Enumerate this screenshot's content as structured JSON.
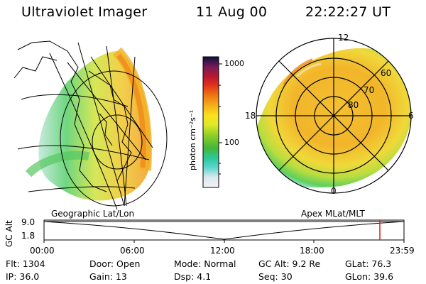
{
  "header": {
    "instrument": "Ultraviolet Imager",
    "date": "11 Aug 00",
    "time": "22:22:27 UT"
  },
  "colorbar": {
    "ticks": [
      "1000",
      "100"
    ],
    "unit_label": "photon cm⁻²s⁻¹"
  },
  "polar_plot": {
    "mlt_labels": [
      "12",
      "18",
      "6",
      "0"
    ],
    "lat_labels": [
      "60",
      "70",
      "80"
    ]
  },
  "panel_labels": {
    "left": "Geographic Lat/Lon",
    "right": "Apex MLat/MLT"
  },
  "altitude_chart": {
    "ylabel": "GC Alt",
    "y_ticks": [
      "9.0",
      "1.8"
    ],
    "x_ticks": [
      "00:00",
      "06:00",
      "12:00",
      "18:00",
      "23:59"
    ]
  },
  "info": {
    "row1": [
      {
        "label": "Flt:",
        "value": "1304"
      },
      {
        "label": "Door:",
        "value": "Open"
      },
      {
        "label": "Mode:",
        "value": "Normal"
      },
      {
        "label": "GC Alt:",
        "value": "9.2 Re"
      },
      {
        "label": "GLat:",
        "value": "76.3"
      }
    ],
    "row2": [
      {
        "label": "IP:",
        "value": "36.0"
      },
      {
        "label": "Gain:",
        "value": "13"
      },
      {
        "label": "Dsp:",
        "value": "4.1"
      },
      {
        "label": "Seq:",
        "value": "30"
      },
      {
        "label": "GLon:",
        "value": "39.6"
      }
    ]
  }
}
